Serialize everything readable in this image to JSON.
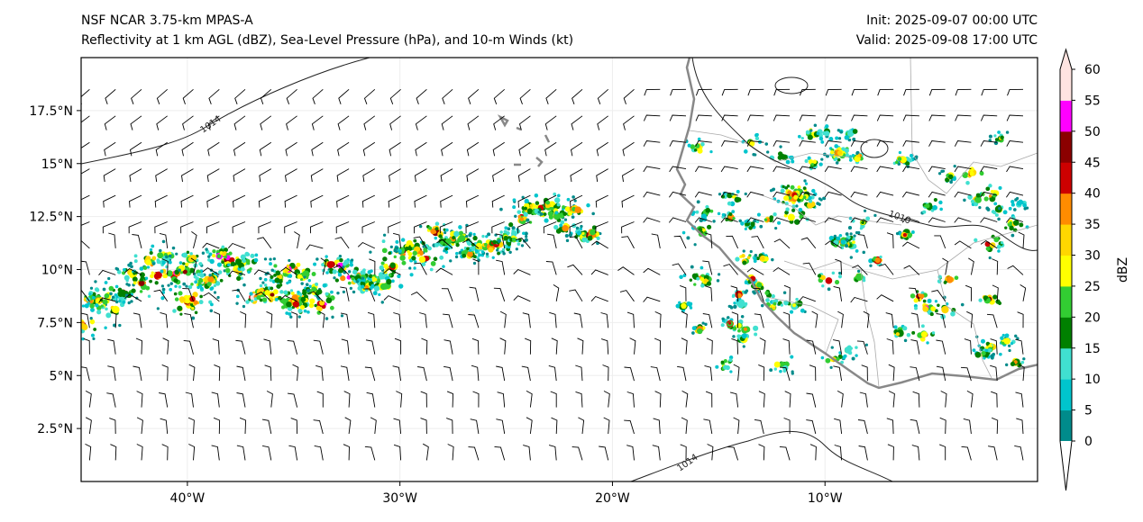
{
  "header": {
    "title_line1": "NSF NCAR 3.75-km MPAS-A",
    "title_line2": "Reflectivity at 1 km AGL (dBZ), Sea-Level Pressure (hPa), and 10-m Winds (kt)",
    "init": "Init: 2025-09-07 00:00 UTC",
    "valid": "Valid: 2025-09-08 17:00 UTC"
  },
  "axes": {
    "x_ticks": [
      {
        "value": -40,
        "label": "40°W"
      },
      {
        "value": -30,
        "label": "30°W"
      },
      {
        "value": -20,
        "label": "20°W"
      },
      {
        "value": -10,
        "label": "10°W"
      }
    ],
    "y_ticks": [
      {
        "value": 2.5,
        "label": "2.5°N"
      },
      {
        "value": 5,
        "label": "5°N"
      },
      {
        "value": 7.5,
        "label": "7.5°N"
      },
      {
        "value": 10,
        "label": "10°N"
      },
      {
        "value": 12.5,
        "label": "12.5°N"
      },
      {
        "value": 15,
        "label": "15°N"
      },
      {
        "value": 17.5,
        "label": "17.5°N"
      }
    ],
    "lon_range": [
      -45,
      0
    ],
    "lat_range": [
      0,
      20
    ]
  },
  "isobars": [
    {
      "label": "1014"
    },
    {
      "label": "1010"
    },
    {
      "label": "1014"
    }
  ],
  "colorbar": {
    "label": "dBZ",
    "ticks": [
      "0",
      "5",
      "10",
      "15",
      "20",
      "25",
      "30",
      "35",
      "40",
      "45",
      "50",
      "55",
      "60"
    ],
    "colors": [
      "#008b8b",
      "#00c5cd",
      "#40e0d0",
      "#008000",
      "#32cd32",
      "#ffff00",
      "#ffd700",
      "#ff8c00",
      "#cd0000",
      "#8b0000",
      "#ff00ff",
      "#ffe4e1"
    ],
    "under_color": "#ffffff",
    "over_color": "#ffe4e1"
  }
}
